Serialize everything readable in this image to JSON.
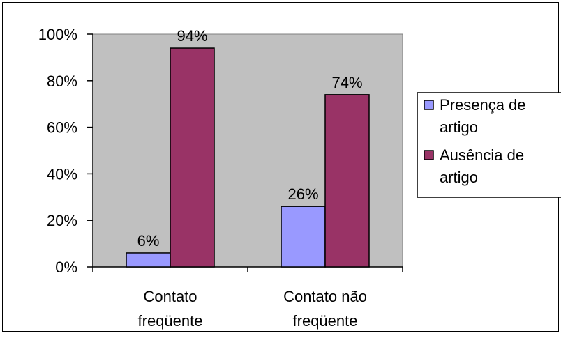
{
  "chart_data": {
    "type": "bar",
    "categories": [
      [
        "Contato",
        "freqüente"
      ],
      [
        "Contato não",
        "freqüente"
      ]
    ],
    "series": [
      {
        "name": [
          "Presença de",
          "artigo"
        ],
        "values": [
          6,
          26
        ],
        "color": "#9999ff"
      },
      {
        "name": [
          "Ausência de",
          "artigo"
        ],
        "values": [
          94,
          74
        ],
        "color": "#993366"
      }
    ],
    "data_labels": [
      [
        "6%",
        "26%"
      ],
      [
        "94%",
        "74%"
      ]
    ],
    "ylim": [
      0,
      100
    ],
    "yticks": [
      0,
      20,
      40,
      60,
      80,
      100
    ],
    "ytick_labels": [
      "0%",
      "20%",
      "40%",
      "60%",
      "80%",
      "100%"
    ],
    "plot_background": "#c0c0c0",
    "grid": false,
    "legend_position": "right"
  }
}
